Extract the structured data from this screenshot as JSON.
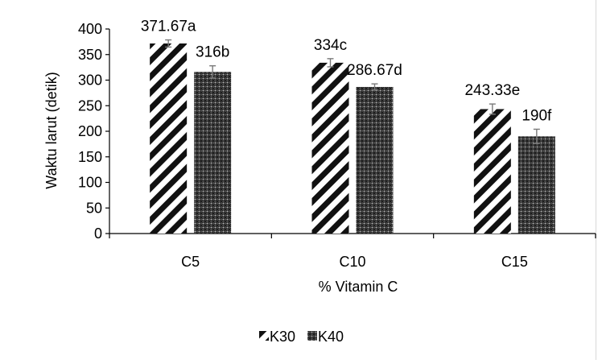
{
  "chart_data": {
    "type": "bar",
    "xlabel": "% Vitamin C",
    "ylabel": "Waktu larut (detik)",
    "ylim": [
      0,
      400
    ],
    "yticks": [
      0,
      50,
      100,
      150,
      200,
      250,
      300,
      350,
      400
    ],
    "categories": [
      "C5",
      "C10",
      "C15"
    ],
    "series": [
      {
        "name": "K30",
        "pattern": "diagonal-stripes",
        "values": [
          371.67,
          334,
          243.33
        ],
        "errors": [
          7,
          8,
          10
        ],
        "labels": [
          "371.67a",
          "334c",
          "243.33e"
        ]
      },
      {
        "name": "K40",
        "pattern": "crosshatch",
        "values": [
          316,
          286.67,
          190
        ],
        "errors": [
          12,
          6,
          14
        ],
        "labels": [
          "316b",
          "286.67d",
          "190f"
        ]
      }
    ],
    "legend_position": "bottom",
    "grid": false
  }
}
